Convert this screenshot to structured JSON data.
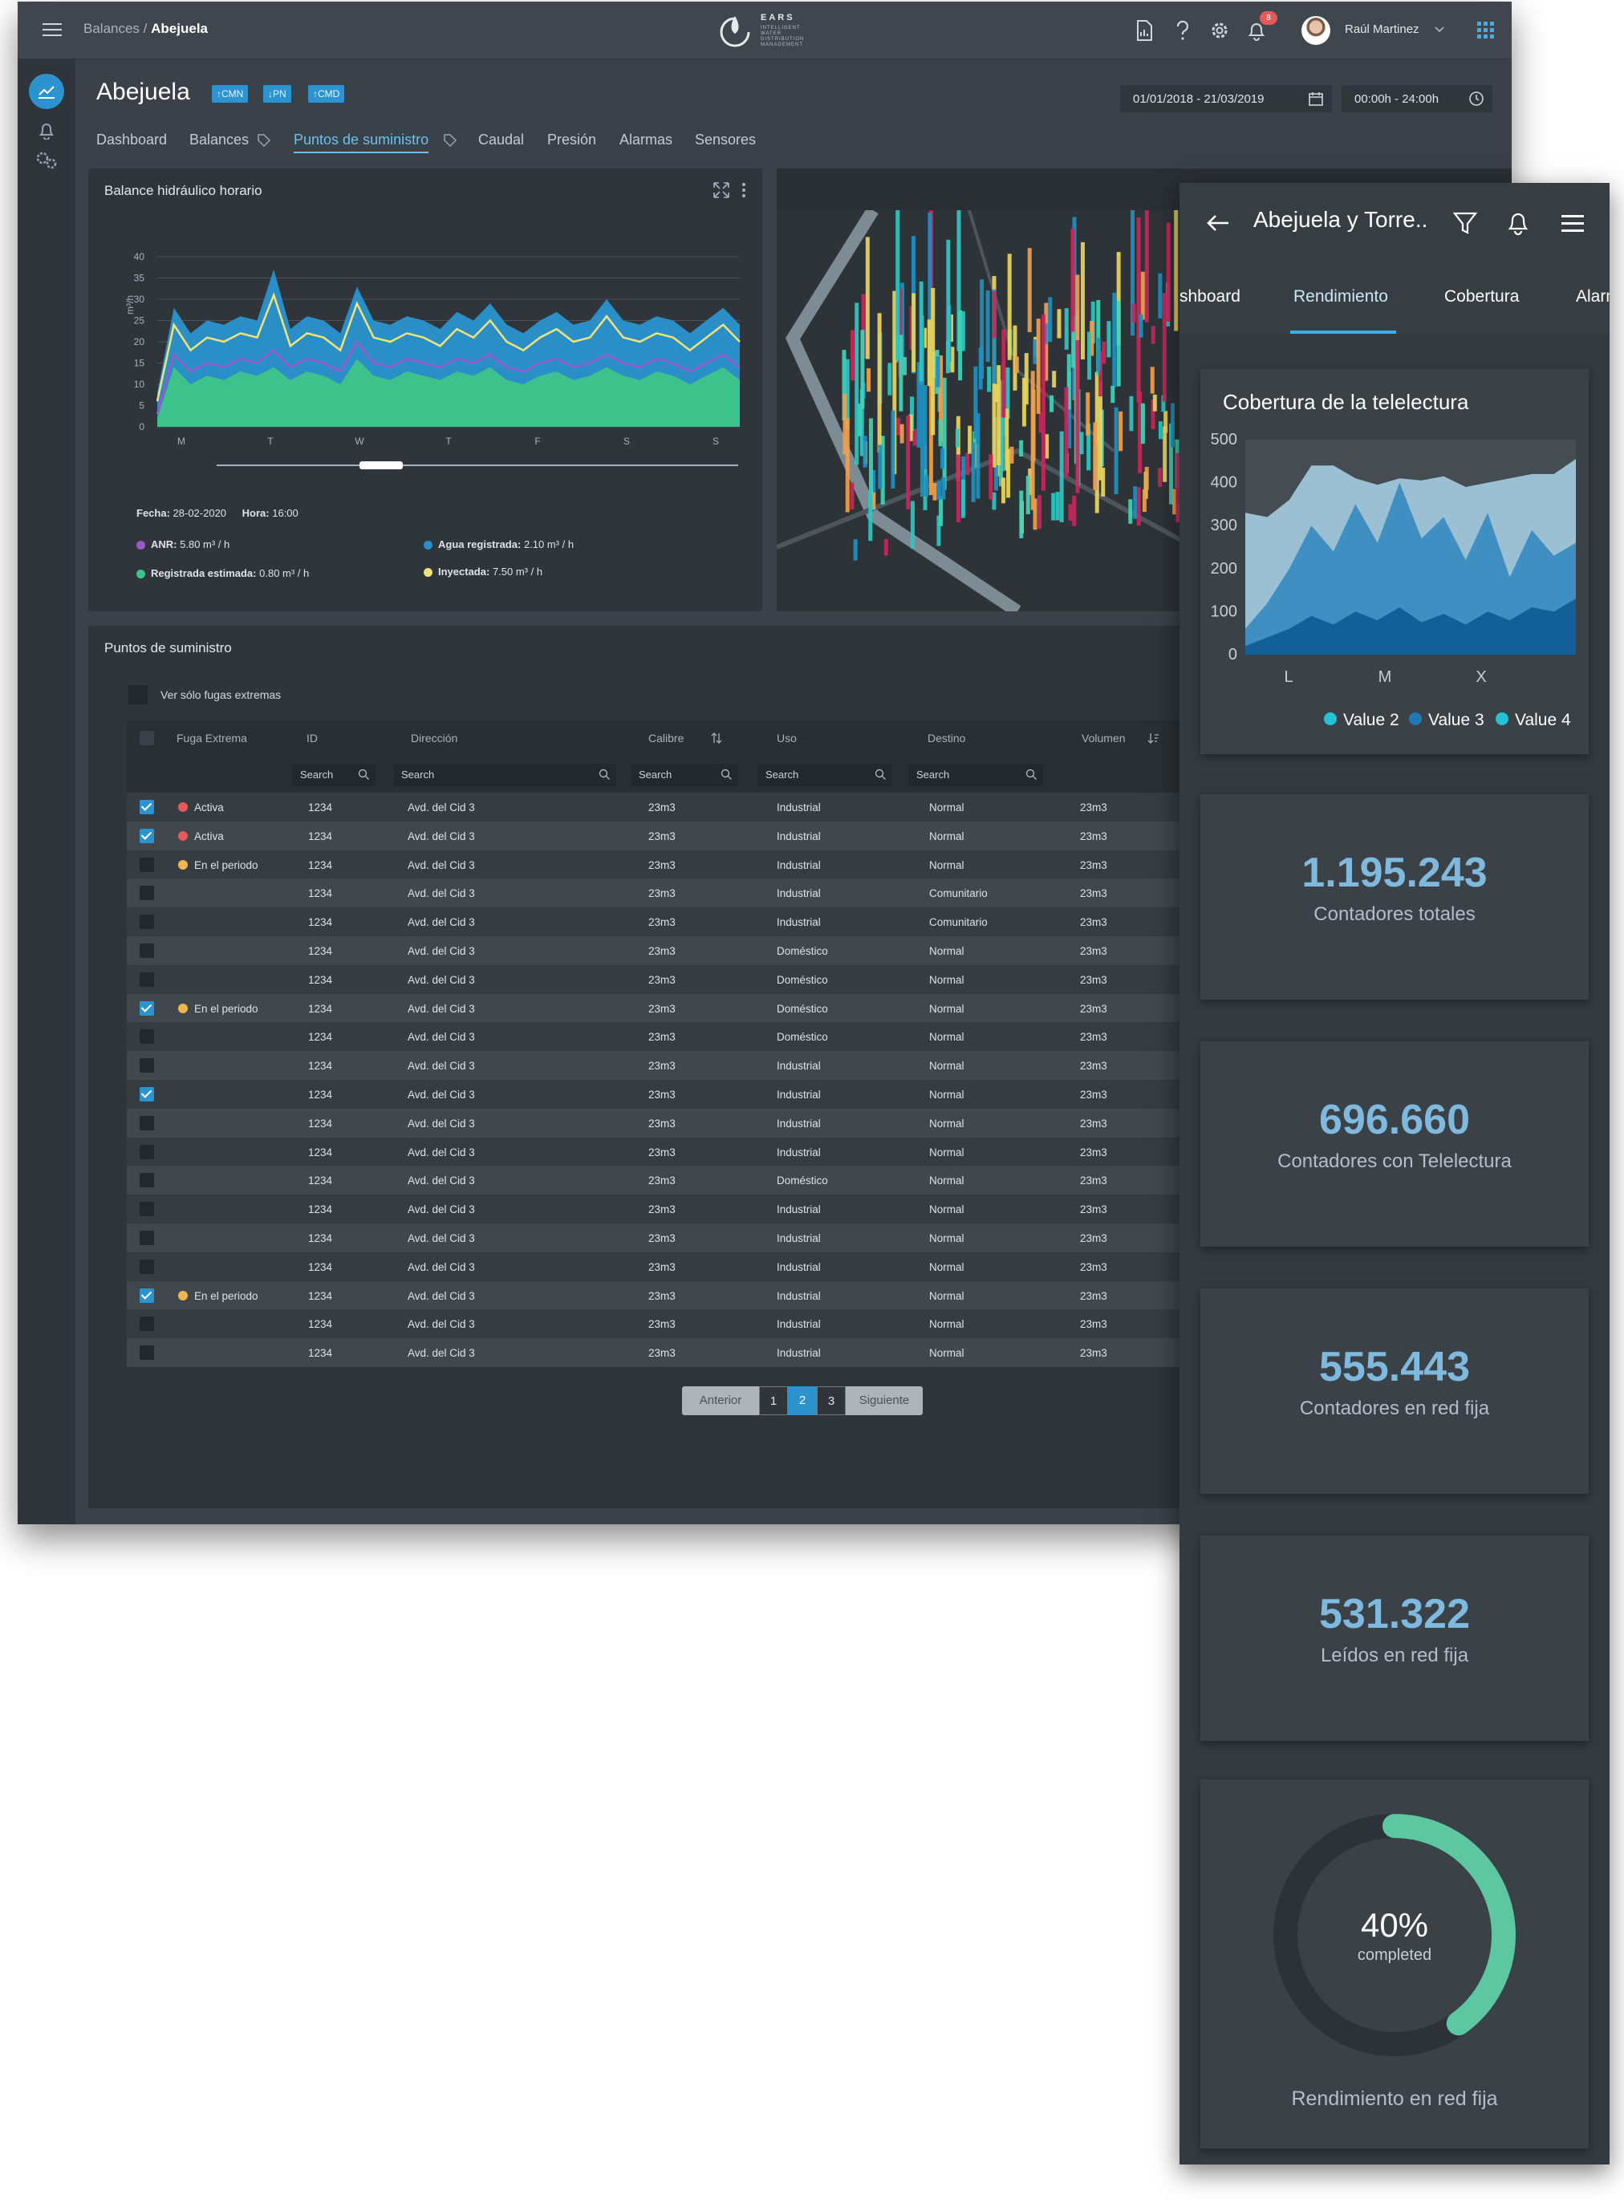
{
  "topbar": {
    "breadcrumb_parent": "Balances",
    "breadcrumb_sep": "/",
    "breadcrumb_current": "Abejuela",
    "logo_name": "EARS",
    "logo_tagline": "INTELLIGENT WATER DISTRIBUTION MANAGEMENT",
    "notifications": "8",
    "user_name": "Raúl Martinez"
  },
  "page": {
    "title": "Abejuela",
    "badges": [
      "↑CMN",
      "↓PN",
      "↑CMD"
    ],
    "date_range": "01/01/2018 - 21/03/2019",
    "time_range": "00:00h - 24:00h"
  },
  "tabs": [
    "Dashboard",
    "Balances",
    "Puntos de suministro",
    "Caudal",
    "Presión",
    "Alarmas",
    "Sensores"
  ],
  "chart_card": {
    "title": "Balance hidráulico horario",
    "fecha_label": "Fecha:",
    "fecha": "28-02-2020",
    "hora_label": "Hora:",
    "hora": "16:00",
    "legend": [
      {
        "label": "ANR:",
        "value": "5.80 m³ / h",
        "color": "#9b59c7"
      },
      {
        "label": "Agua registrada:",
        "value": "2.10 m³ / h",
        "color": "#2a8fc7"
      },
      {
        "label": "Registrada estimada:",
        "value": "0.80 m³ / h",
        "color": "#3ec28b"
      },
      {
        "label": "Inyectada:",
        "value": "7.50 m³ / h",
        "color": "#f1e27a"
      }
    ]
  },
  "chart_data": {
    "type": "area",
    "ylabel": "m³/h",
    "ylim": [
      0,
      40
    ],
    "yticks": [
      "0",
      "5",
      "10",
      "15",
      "20",
      "25",
      "30",
      "35",
      "40"
    ],
    "xticks": [
      "M",
      "T",
      "W",
      "T",
      "F",
      "S",
      "S"
    ],
    "series": [
      {
        "name": "Registrada estimada",
        "color": "#3ec28b",
        "values": [
          2,
          14,
          10,
          12,
          11,
          13,
          12,
          14,
          11,
          13,
          12,
          10,
          16,
          12,
          11,
          13,
          12,
          11,
          13,
          12,
          14,
          11,
          10,
          12,
          13,
          11,
          12,
          14,
          12,
          11,
          13,
          12,
          10,
          12,
          14,
          11
        ]
      },
      {
        "name": "ANR",
        "color": "#9b59c7",
        "values": [
          3,
          17,
          13,
          15,
          14,
          16,
          15,
          18,
          14,
          16,
          15,
          13,
          20,
          15,
          14,
          16,
          15,
          14,
          16,
          15,
          17,
          14,
          13,
          15,
          16,
          14,
          15,
          17,
          15,
          14,
          16,
          15,
          13,
          15,
          17,
          14
        ]
      },
      {
        "name": "Inyectada",
        "color": "#f1e27a",
        "values": [
          6,
          24,
          18,
          21,
          20,
          22,
          21,
          31,
          19,
          22,
          21,
          18,
          29,
          21,
          20,
          22,
          21,
          19,
          23,
          21,
          25,
          20,
          18,
          21,
          23,
          20,
          21,
          26,
          21,
          20,
          22,
          21,
          18,
          21,
          24,
          20
        ]
      },
      {
        "name": "Agua registrada",
        "color": "#2a8fc7",
        "values": [
          8,
          28,
          22,
          25,
          24,
          26,
          25,
          37,
          23,
          26,
          25,
          22,
          33,
          25,
          24,
          26,
          25,
          23,
          27,
          25,
          29,
          24,
          22,
          25,
          27,
          24,
          25,
          30,
          25,
          24,
          26,
          25,
          22,
          25,
          28,
          24
        ]
      }
    ]
  },
  "table_card": {
    "title": "Puntos de suministro",
    "filter_label": "Ver sólo fugas extremas",
    "columns": [
      "Fuga Extrema",
      "ID",
      "Dirección",
      "Calibre",
      "Uso",
      "Destino",
      "Volumen"
    ],
    "search_placeholder": "Search",
    "rows": [
      {
        "checked": true,
        "status": "Activa",
        "status_color": "#e25a5a",
        "id": "1234",
        "dir": "Avd. del Cid 3",
        "calibre": "23m3",
        "uso": "Industrial",
        "destino": "Normal",
        "vol": "23m3"
      },
      {
        "checked": true,
        "status": "Activa",
        "status_color": "#e25a5a",
        "id": "1234",
        "dir": "Avd. del Cid 3",
        "calibre": "23m3",
        "uso": "Industrial",
        "destino": "Normal",
        "vol": "23m3"
      },
      {
        "checked": false,
        "status": "En el periodo",
        "status_color": "#f0b450",
        "id": "1234",
        "dir": "Avd. del Cid 3",
        "calibre": "23m3",
        "uso": "Industrial",
        "destino": "Normal",
        "vol": "23m3"
      },
      {
        "checked": false,
        "status": "",
        "status_color": "",
        "id": "1234",
        "dir": "Avd. del Cid 3",
        "calibre": "23m3",
        "uso": "Industrial",
        "destino": "Comunitario",
        "vol": "23m3"
      },
      {
        "checked": false,
        "status": "",
        "status_color": "",
        "id": "1234",
        "dir": "Avd. del Cid 3",
        "calibre": "23m3",
        "uso": "Industrial",
        "destino": "Comunitario",
        "vol": "23m3"
      },
      {
        "checked": false,
        "status": "",
        "status_color": "",
        "id": "1234",
        "dir": "Avd. del Cid 3",
        "calibre": "23m3",
        "uso": "Doméstico",
        "destino": "Normal",
        "vol": "23m3"
      },
      {
        "checked": false,
        "status": "",
        "status_color": "",
        "id": "1234",
        "dir": "Avd. del Cid 3",
        "calibre": "23m3",
        "uso": "Doméstico",
        "destino": "Normal",
        "vol": "23m3"
      },
      {
        "checked": true,
        "status": "En el periodo",
        "status_color": "#f0b450",
        "id": "1234",
        "dir": "Avd. del Cid 3",
        "calibre": "23m3",
        "uso": "Doméstico",
        "destino": "Normal",
        "vol": "23m3"
      },
      {
        "checked": false,
        "status": "",
        "status_color": "",
        "id": "1234",
        "dir": "Avd. del Cid 3",
        "calibre": "23m3",
        "uso": "Doméstico",
        "destino": "Normal",
        "vol": "23m3"
      },
      {
        "checked": false,
        "status": "",
        "status_color": "",
        "id": "1234",
        "dir": "Avd. del Cid 3",
        "calibre": "23m3",
        "uso": "Industrial",
        "destino": "Normal",
        "vol": "23m3"
      },
      {
        "checked": true,
        "status": "",
        "status_color": "",
        "id": "1234",
        "dir": "Avd. del Cid 3",
        "calibre": "23m3",
        "uso": "Industrial",
        "destino": "Normal",
        "vol": "23m3"
      },
      {
        "checked": false,
        "status": "",
        "status_color": "",
        "id": "1234",
        "dir": "Avd. del Cid 3",
        "calibre": "23m3",
        "uso": "Industrial",
        "destino": "Normal",
        "vol": "23m3"
      },
      {
        "checked": false,
        "status": "",
        "status_color": "",
        "id": "1234",
        "dir": "Avd. del Cid 3",
        "calibre": "23m3",
        "uso": "Industrial",
        "destino": "Normal",
        "vol": "23m3"
      },
      {
        "checked": false,
        "status": "",
        "status_color": "",
        "id": "1234",
        "dir": "Avd. del Cid 3",
        "calibre": "23m3",
        "uso": "Doméstico",
        "destino": "Normal",
        "vol": "23m3"
      },
      {
        "checked": false,
        "status": "",
        "status_color": "",
        "id": "1234",
        "dir": "Avd. del Cid 3",
        "calibre": "23m3",
        "uso": "Industrial",
        "destino": "Normal",
        "vol": "23m3"
      },
      {
        "checked": false,
        "status": "",
        "status_color": "",
        "id": "1234",
        "dir": "Avd. del Cid 3",
        "calibre": "23m3",
        "uso": "Industrial",
        "destino": "Normal",
        "vol": "23m3"
      },
      {
        "checked": false,
        "status": "",
        "status_color": "",
        "id": "1234",
        "dir": "Avd. del Cid 3",
        "calibre": "23m3",
        "uso": "Industrial",
        "destino": "Normal",
        "vol": "23m3"
      },
      {
        "checked": true,
        "status": "En el periodo",
        "status_color": "#f0b450",
        "id": "1234",
        "dir": "Avd. del Cid 3",
        "calibre": "23m3",
        "uso": "Industrial",
        "destino": "Normal",
        "vol": "23m3"
      },
      {
        "checked": false,
        "status": "",
        "status_color": "",
        "id": "1234",
        "dir": "Avd. del Cid 3",
        "calibre": "23m3",
        "uso": "Industrial",
        "destino": "Normal",
        "vol": "23m3"
      },
      {
        "checked": false,
        "status": "",
        "status_color": "",
        "id": "1234",
        "dir": "Avd. del Cid 3",
        "calibre": "23m3",
        "uso": "Industrial",
        "destino": "Normal",
        "vol": "23m3"
      }
    ],
    "pager": {
      "prev": "Anterior",
      "pages": [
        "1",
        "2",
        "3"
      ],
      "current": "2",
      "next": "Siguiente"
    }
  },
  "mobile": {
    "title": "Abejuela y Torre..",
    "tabs": [
      "shboard",
      "Rendimiento",
      "Cobertura",
      "Alarm"
    ],
    "coverage": {
      "title": "Cobertura de la telelectura",
      "chart_data": {
        "type": "area",
        "ylim": [
          0,
          500
        ],
        "yticks": [
          "500",
          "400",
          "300",
          "200",
          "100",
          "0"
        ],
        "xticks": [
          "L",
          "M",
          "X"
        ],
        "series": [
          {
            "name": "Value 2",
            "color": "#27c0d6",
            "values": [
              330,
              320,
              360,
              440,
              440,
              410,
              395,
              410,
              405,
              415,
              390,
              400,
              410,
              420,
              420,
              455
            ]
          },
          {
            "name": "Value 3",
            "color": "#1e78b4",
            "values": [
              60,
              120,
              200,
              300,
              240,
              350,
              260,
              400,
              270,
              320,
              220,
              330,
              180,
              290,
              230,
              260
            ]
          },
          {
            "name": "Value 4",
            "color": "#27c0d6",
            "values": [
              20,
              40,
              60,
              90,
              70,
              100,
              80,
              110,
              75,
              95,
              70,
              100,
              80,
              110,
              100,
              130
            ]
          }
        ]
      }
    },
    "kpis": [
      {
        "value": "1.195.243",
        "label": "Contadores totales"
      },
      {
        "value": "696.660",
        "label": "Contadores con Telelectura"
      },
      {
        "value": "555.443",
        "label": "Contadores en red fija"
      },
      {
        "value": "531.322",
        "label": "Leídos en red fija"
      }
    ],
    "gauge": {
      "value": "40%",
      "sub": "completed",
      "label": "Rendimiento en red fija",
      "fraction": 0.4,
      "color": "#5cc7a1"
    }
  },
  "colors": {
    "accent": "#2d93cf",
    "bg": "#3a4148",
    "card": "#2f353a"
  }
}
